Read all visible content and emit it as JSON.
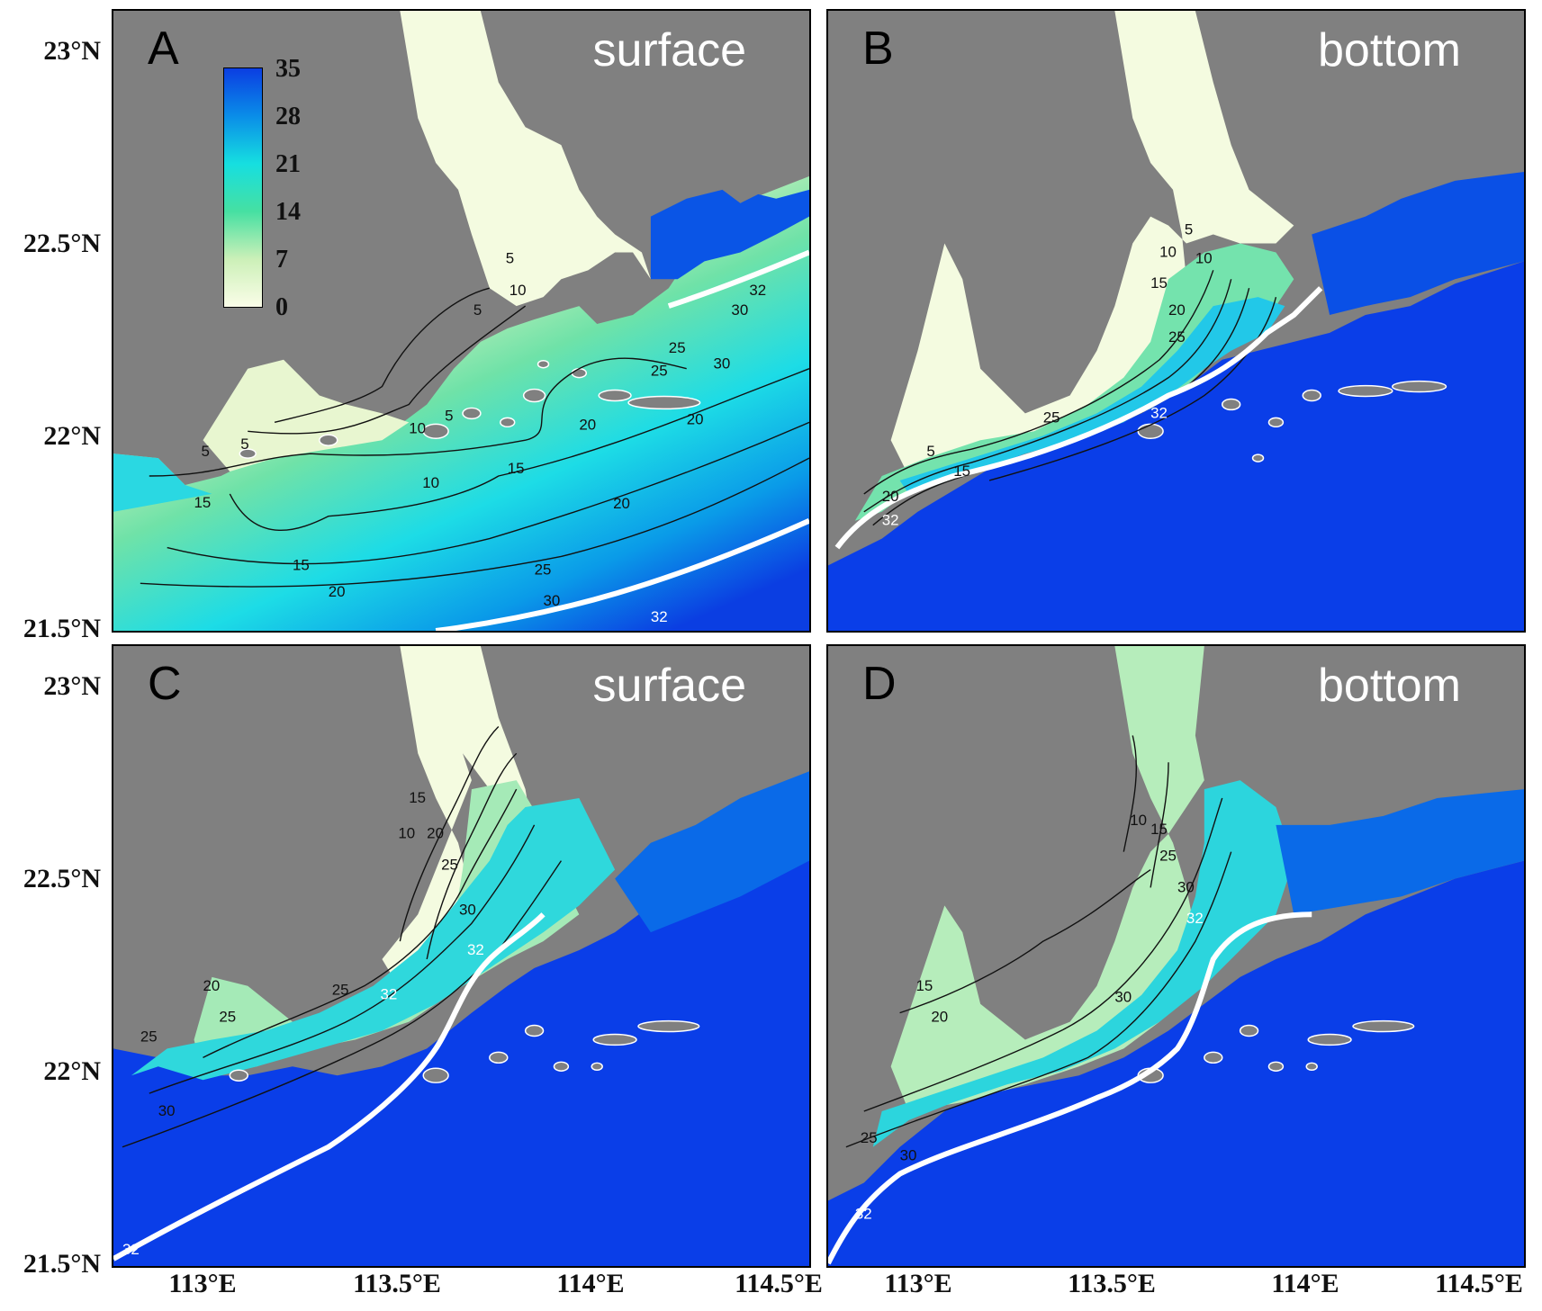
{
  "panels": [
    {
      "letter": "A",
      "layer": "surface"
    },
    {
      "letter": "B",
      "layer": "bottom"
    },
    {
      "letter": "C",
      "layer": "surface"
    },
    {
      "letter": "D",
      "layer": "bottom"
    }
  ],
  "axes": {
    "lat_ticks_top": [
      "23°N",
      "22.5°N",
      "22°N",
      "21.5°N"
    ],
    "lat_ticks_bottom": [
      "23°N",
      "22.5°N",
      "22°N",
      "21.5°N"
    ],
    "lon_ticks_left": [
      "113°E",
      "113.5°E",
      "114°E",
      "114.5°E"
    ],
    "lon_ticks_right": [
      "113°E",
      "113.5°E",
      "114°E",
      "114.5°E"
    ]
  },
  "colorbar": {
    "ticks": [
      "35",
      "28",
      "21",
      "14",
      "7",
      "0"
    ],
    "colors": [
      "#fafde8",
      "#ccf0b8",
      "#46e0a2",
      "#16dfe0",
      "#0a8de8",
      "#0b3ee2"
    ]
  },
  "contour_labels": {
    "A": [
      "5",
      "5",
      "10",
      "10",
      "5",
      "5",
      "5",
      "15",
      "10",
      "15",
      "20",
      "15",
      "20",
      "25",
      "30",
      "20",
      "25",
      "30",
      "32",
      "20",
      "25",
      "30",
      "32"
    ],
    "B": [
      "5",
      "10",
      "15",
      "10",
      "20",
      "25",
      "32",
      "5",
      "15",
      "20",
      "25",
      "32"
    ],
    "C": [
      "15",
      "10",
      "20",
      "25",
      "30",
      "32",
      "32",
      "25",
      "20",
      "25",
      "25",
      "30",
      "32"
    ],
    "D": [
      "10",
      "15",
      "25",
      "30",
      "32",
      "15",
      "20",
      "30",
      "25",
      "30",
      "32"
    ]
  },
  "colors": {
    "land": "#808080",
    "open_sea": "#0a3ee8",
    "isohaline_32": "#ffffff",
    "contour": "#111111"
  },
  "map_extent": {
    "lon": [
      112.8,
      114.6
    ],
    "lat": [
      21.5,
      23.1
    ]
  }
}
